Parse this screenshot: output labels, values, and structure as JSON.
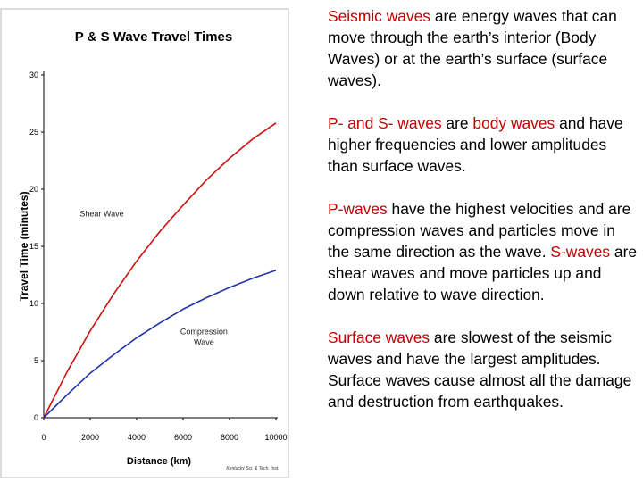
{
  "chart_data": {
    "type": "line",
    "title": "P & S Wave Travel Times",
    "xlabel": "Distance (km)",
    "ylabel": "Travel Time (minutes)",
    "xlim": [
      0,
      10000
    ],
    "ylim": [
      0,
      30
    ],
    "x_ticks": [
      0,
      2000,
      4000,
      6000,
      8000,
      10000
    ],
    "y_ticks": [
      0,
      5,
      10,
      15,
      20,
      25,
      30
    ],
    "credit": "Kentucky Sci. & Tech. Inst.",
    "series": [
      {
        "name": "Shear Wave",
        "label_lines": [
          "Shear Wave"
        ],
        "color": "#cc1111",
        "x": [
          0,
          1000,
          2000,
          3000,
          4000,
          5000,
          6000,
          7000,
          8000,
          9000,
          10000
        ],
        "y": [
          0,
          4.0,
          7.6,
          10.8,
          13.7,
          16.3,
          18.6,
          20.8,
          22.7,
          24.4,
          25.8
        ]
      },
      {
        "name": "Compression Wave",
        "label_lines": [
          "Compression",
          "Wave"
        ],
        "color": "#2233aa",
        "x": [
          0,
          1000,
          2000,
          3000,
          4000,
          5000,
          6000,
          7000,
          8000,
          9000,
          10000
        ],
        "y": [
          0,
          2.0,
          3.9,
          5.5,
          7.0,
          8.3,
          9.5,
          10.5,
          11.4,
          12.2,
          12.9
        ]
      }
    ]
  },
  "text": {
    "p1": {
      "a": "Seismic waves",
      "b": " are energy waves that can move through the earth’s interior (Body Waves) or at the earth’s surface (surface waves)."
    },
    "p2": {
      "a": "P- and S- waves",
      "b": " are ",
      "c": "body waves",
      "d": " and have higher frequencies and lower amplitudes than surface waves."
    },
    "p3": {
      "a": "P-waves",
      "b": " have the highest velocities and are compression waves and particles move in the same direction as the wave.  ",
      "c": "S-waves",
      "d": " are shear waves and move particles up and down relative to wave direction."
    },
    "p4": {
      "a": "Surface waves",
      "b": " are slowest of the seismic waves and have the largest amplitudes.  Surface waves cause almost all the damage and destruction from earthquakes."
    }
  }
}
